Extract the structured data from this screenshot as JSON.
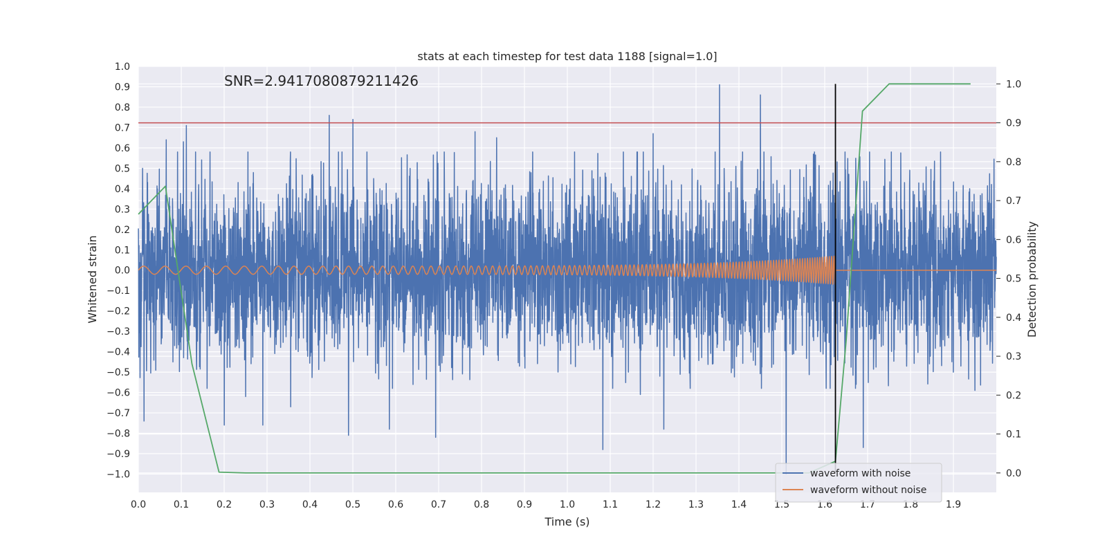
{
  "chart_data": {
    "type": "line",
    "title": "stats at each timestep for test data 1188 [signal=1.0]",
    "annotation": "SNR=2.9417080879211426",
    "xlabel": "Time (s)",
    "ylabel": "Whitened strain",
    "y2label": "Detection probability",
    "xlim": [
      0.0,
      2.0
    ],
    "ylim": [
      -1.09,
      1.0
    ],
    "y2lim": [
      -0.05,
      1.045
    ],
    "x_ticks": [
      0.0,
      0.1,
      0.2,
      0.3,
      0.4,
      0.5,
      0.6,
      0.7,
      0.8,
      0.9,
      1.0,
      1.1,
      1.2,
      1.3,
      1.4,
      1.5,
      1.6,
      1.7,
      1.8,
      1.9
    ],
    "x_tick_labels": [
      "0.0",
      "0.1",
      "0.2",
      "0.3",
      "0.4",
      "0.5",
      "0.6",
      "0.7",
      "0.8",
      "0.9",
      "1.0",
      "1.1",
      "1.2",
      "1.3",
      "1.4",
      "1.5",
      "1.6",
      "1.7",
      "1.8",
      "1.9"
    ],
    "y_ticks": [
      1.0,
      0.9,
      0.8,
      0.7,
      0.6,
      0.5,
      0.4,
      0.3,
      0.2,
      0.1,
      0.0,
      -0.1,
      -0.2,
      -0.3,
      -0.4,
      -0.5,
      -0.6,
      -0.7,
      -0.8,
      -0.9,
      -1.0
    ],
    "y_tick_labels": [
      "1.0",
      "0.9",
      "0.8",
      "0.7",
      "0.6",
      "0.5",
      "0.4",
      "0.3",
      "0.2",
      "0.1",
      "0.0",
      "−0.1",
      "−0.2",
      "−0.3",
      "−0.4",
      "−0.5",
      "−0.6",
      "−0.7",
      "−0.8",
      "−0.9",
      "−1.0"
    ],
    "y2_ticks": [
      1.0,
      0.9,
      0.8,
      0.7,
      0.6,
      0.5,
      0.4,
      0.3,
      0.2,
      0.1,
      0.0
    ],
    "y2_tick_labels": [
      "1.0",
      "0.9",
      "0.8",
      "0.7",
      "0.6",
      "0.5",
      "0.4",
      "0.3",
      "0.2",
      "0.1",
      "0.0"
    ],
    "grid": true,
    "legend_position": "bottom-right",
    "series": [
      {
        "name": "waveform with noise",
        "color": "#4c72b0",
        "axis": "left",
        "x_range": [
          0.0,
          2.0
        ],
        "std": 0.22,
        "peaks": [
          [
            0.01,
            0.5
          ],
          [
            0.013,
            -0.74
          ],
          [
            0.065,
            0.64
          ],
          [
            0.105,
            0.63
          ],
          [
            0.112,
            0.71
          ],
          [
            0.2,
            0.7
          ],
          [
            0.2,
            -0.76
          ],
          [
            0.25,
            -0.62
          ],
          [
            0.29,
            -0.76
          ],
          [
            0.355,
            -0.67
          ],
          [
            0.445,
            0.76
          ],
          [
            0.49,
            -0.81
          ],
          [
            0.5,
            0.74
          ],
          [
            0.585,
            -0.78
          ],
          [
            0.693,
            -0.82
          ],
          [
            0.785,
            0.68
          ],
          [
            0.835,
            0.65
          ],
          [
            1.083,
            -0.88
          ],
          [
            1.17,
            -0.61
          ],
          [
            1.2,
            0.67
          ],
          [
            1.225,
            -0.78
          ],
          [
            1.355,
            0.91
          ],
          [
            1.45,
            0.86
          ],
          [
            1.51,
            -1.0
          ],
          [
            1.69,
            -0.87
          ],
          [
            1.87,
            0.58
          ],
          [
            1.95,
            -0.59
          ]
        ]
      },
      {
        "name": "waveform without noise",
        "color": "#dd8452",
        "axis": "left",
        "x_range": [
          0.0,
          1.625
        ],
        "description": "chirp from ~20 Hz to ~130 Hz with amplitude rising from 0.02 to 0.07, zero after merger"
      },
      {
        "color": "#55a868",
        "axis": "right",
        "x": [
          0.0,
          0.063,
          0.125,
          0.188,
          0.25,
          0.313,
          0.375,
          0.438,
          0.5,
          0.563,
          0.625,
          0.688,
          0.75,
          0.813,
          0.875,
          0.938,
          1.0,
          1.063,
          1.125,
          1.188,
          1.25,
          1.313,
          1.375,
          1.438,
          1.5,
          1.563,
          1.625,
          1.65,
          1.688,
          1.75,
          1.813,
          1.875,
          1.94
        ],
        "values": [
          0.665,
          0.737,
          0.28,
          0.002,
          0.0,
          0.0,
          0.0,
          0.0,
          0.0,
          0.0,
          0.0,
          0.0,
          0.0,
          0.0,
          0.0,
          0.0,
          0.0,
          0.0,
          0.0,
          0.0,
          0.0,
          0.0,
          0.0,
          0.0,
          0.0,
          0.0,
          0.03,
          0.34,
          0.93,
          1.0,
          1.0,
          1.0,
          1.0
        ]
      }
    ],
    "threshold_line": {
      "axis": "right",
      "value": 0.9,
      "color": "#c44e52"
    },
    "merger_line": {
      "x": 1.625,
      "y_from": 0.0,
      "y_to": 1.0,
      "axis": "right",
      "color": "#000000"
    },
    "legend": [
      {
        "label": "waveform with noise",
        "color": "#4c72b0"
      },
      {
        "label": "waveform without noise",
        "color": "#dd8452"
      }
    ]
  }
}
